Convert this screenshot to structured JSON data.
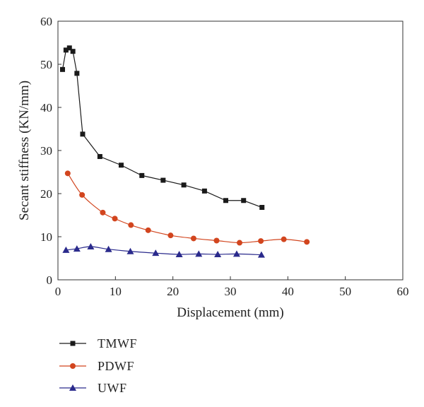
{
  "chart_data": {
    "type": "line",
    "title": "",
    "xlabel": "Displacement (mm)",
    "ylabel": "Secant stiffness (KN/mm)",
    "xlim": [
      0,
      60
    ],
    "ylim": [
      0,
      60
    ],
    "xticks": [
      "0",
      "10",
      "20",
      "30",
      "40",
      "50",
      "60"
    ],
    "yticks": [
      "0",
      "10",
      "20",
      "30",
      "40",
      "50",
      "60"
    ],
    "grid": false,
    "legend_position": "bottom-left",
    "series": [
      {
        "name": "TMWF",
        "color": "#1a1a1a",
        "marker": "square",
        "x": [
          0.8,
          1.4,
          2.0,
          2.6,
          3.3,
          4.3,
          7.3,
          11.0,
          14.6,
          18.3,
          21.9,
          25.5,
          29.2,
          32.3,
          35.5
        ],
        "y": [
          48.8,
          53.3,
          53.8,
          53.0,
          47.9,
          33.8,
          28.6,
          26.6,
          24.2,
          23.1,
          22.0,
          20.6,
          18.4,
          18.4,
          16.8
        ]
      },
      {
        "name": "PDWF",
        "color": "#d2451e",
        "marker": "circle",
        "x": [
          1.7,
          4.2,
          7.8,
          9.9,
          12.7,
          15.7,
          19.6,
          23.6,
          27.6,
          31.6,
          35.3,
          39.3,
          43.3
        ],
        "y": [
          24.7,
          19.7,
          15.6,
          14.2,
          12.7,
          11.5,
          10.3,
          9.6,
          9.1,
          8.6,
          9.0,
          9.4,
          8.8
        ]
      },
      {
        "name": "UWF",
        "color": "#2a2a8c",
        "marker": "triangle",
        "x": [
          1.4,
          3.3,
          5.7,
          8.8,
          12.6,
          17.0,
          21.1,
          24.5,
          27.8,
          31.1,
          35.4
        ],
        "y": [
          6.9,
          7.2,
          7.7,
          7.1,
          6.6,
          6.2,
          5.9,
          6.0,
          5.9,
          6.0,
          5.8
        ]
      }
    ]
  }
}
